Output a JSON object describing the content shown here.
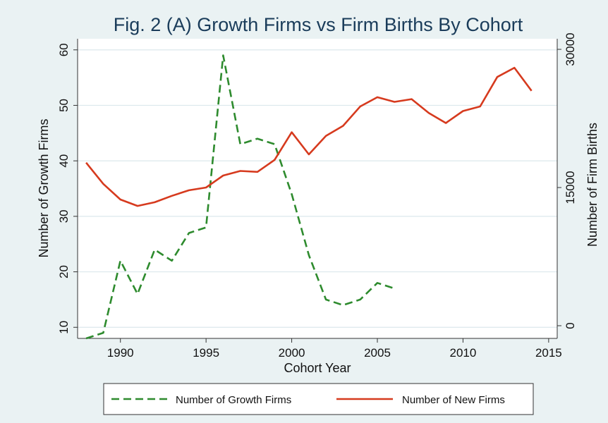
{
  "chart_data": {
    "type": "line",
    "title": "Fig. 2 (A) Growth Firms vs Firm Births By Cohort",
    "xlabel": "Cohort Year",
    "ylabel": "Number of Growth Firms",
    "y2label": "Number of Firm Births",
    "xlim": [
      1987.5,
      2015.5
    ],
    "ylim": [
      8,
      62
    ],
    "y2lim": [
      0,
      30000
    ],
    "xticks": [
      1990,
      1995,
      2000,
      2005,
      2010,
      2015
    ],
    "yticks": [
      10,
      20,
      30,
      40,
      50,
      60
    ],
    "y2ticks": [
      0,
      15000,
      30000
    ],
    "grid": true,
    "legend_position": "bottom",
    "series": [
      {
        "name": "Number of Growth Firms",
        "axis": "left",
        "color": "#2e8b2e",
        "style": "dashed",
        "x": [
          1988,
          1989,
          1990,
          1991,
          1992,
          1993,
          1994,
          1995,
          1996,
          1997,
          1998,
          1999,
          2000,
          2001,
          2002,
          2003,
          2004,
          2005,
          2006
        ],
        "values": [
          8,
          9,
          22,
          16,
          24,
          22,
          27,
          28,
          59,
          43,
          44,
          43,
          34,
          23,
          15,
          14,
          15,
          18,
          17
        ]
      },
      {
        "name": "Number of New Firms",
        "axis": "right",
        "color": "#d63a1e",
        "style": "solid",
        "x": [
          1988,
          1989,
          1990,
          1991,
          1992,
          1993,
          1994,
          1995,
          1996,
          1997,
          1998,
          1999,
          2000,
          2001,
          2002,
          2003,
          2004,
          2005,
          2006,
          2007,
          2008,
          2009,
          2010,
          2011,
          2012,
          2013,
          2014
        ],
        "values": [
          17700,
          15400,
          13700,
          13000,
          13400,
          14100,
          14700,
          15000,
          16300,
          16800,
          16700,
          18000,
          21000,
          18600,
          20600,
          21700,
          23800,
          24800,
          24300,
          24600,
          23100,
          22000,
          23300,
          23800,
          27000,
          28000,
          25500
        ]
      }
    ]
  }
}
